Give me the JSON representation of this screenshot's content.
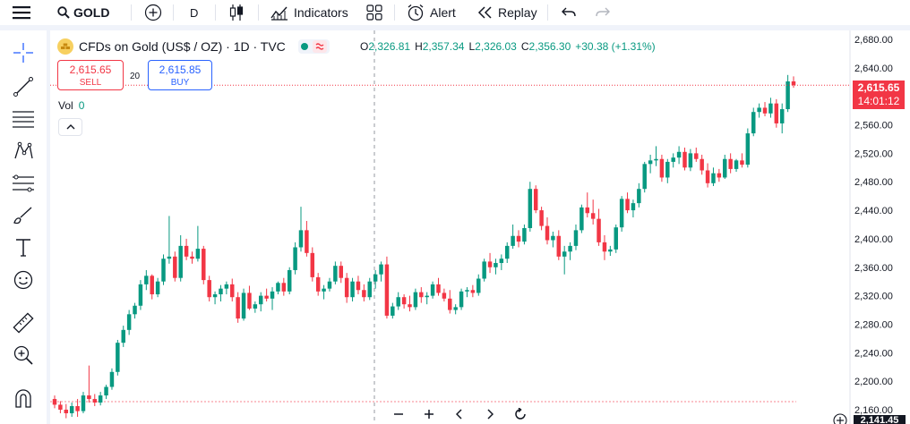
{
  "topbar": {
    "symbol": "GOLD",
    "interval": "D",
    "indicators_label": "Indicators",
    "alert_label": "Alert",
    "replay_label": "Replay"
  },
  "legend": {
    "title": "CFDs on Gold (US$ / OZ) · 1D · TVC",
    "ohlc": {
      "o_key": "O",
      "o_val": "2,326.81",
      "h_key": "H",
      "h_val": "2,357.34",
      "l_key": "L",
      "l_val": "2,326.03",
      "c_key": "C",
      "c_val": "2,356.30",
      "change": "+30.38 (+1.31%)"
    }
  },
  "trade": {
    "sell_price": "2,615.65",
    "sell_label": "SELL",
    "spread": "20",
    "buy_price": "2,615.85",
    "buy_label": "BUY"
  },
  "volume": {
    "label": "Vol",
    "value": "0"
  },
  "price_axis": {
    "current_price": "2,615.65",
    "countdown": "14:01:12",
    "bottom_price": "2,141.45"
  },
  "colors": {
    "up": "#089981",
    "down": "#f23645",
    "grid_line": "#f0f3fa",
    "accent": "#2962ff"
  },
  "icons": [
    "menu-icon",
    "search-icon",
    "plus-circle-icon",
    "candles-icon",
    "indicators-icon",
    "layout-icon",
    "alert-icon",
    "replay-icon",
    "undo-icon",
    "redo-icon",
    "crosshair-icon",
    "trendline-icon",
    "fib-icon",
    "pattern-icon",
    "projection-icon",
    "brush-icon",
    "text-icon",
    "emoji-icon",
    "ruler-icon",
    "zoom-icon",
    "magnet-icon"
  ],
  "chart_data": {
    "type": "candlestick",
    "ylim": [
      2140,
      2690
    ],
    "yticks": [
      "2,680.00",
      "2,640.00",
      "2,600.00",
      "2,560.00",
      "2,520.00",
      "2,480.00",
      "2,440.00",
      "2,400.00",
      "2,360.00",
      "2,320.00",
      "2,280.00",
      "2,240.00",
      "2,200.00",
      "2,160.00"
    ],
    "ytick_values": [
      2680,
      2640,
      2600,
      2560,
      2520,
      2480,
      2440,
      2400,
      2360,
      2320,
      2280,
      2240,
      2200,
      2160
    ],
    "candles": [
      [
        2175,
        2180,
        2162,
        2167
      ],
      [
        2167,
        2172,
        2155,
        2160
      ],
      [
        2160,
        2168,
        2148,
        2155
      ],
      [
        2155,
        2170,
        2150,
        2165
      ],
      [
        2165,
        2175,
        2150,
        2158
      ],
      [
        2158,
        2185,
        2155,
        2180
      ],
      [
        2180,
        2222,
        2170,
        2175
      ],
      [
        2175,
        2182,
        2165,
        2170
      ],
      [
        2170,
        2185,
        2166,
        2180
      ],
      [
        2180,
        2195,
        2175,
        2192
      ],
      [
        2192,
        2218,
        2188,
        2213
      ],
      [
        2213,
        2258,
        2208,
        2254
      ],
      [
        2254,
        2278,
        2248,
        2272
      ],
      [
        2272,
        2300,
        2265,
        2294
      ],
      [
        2294,
        2310,
        2288,
        2306
      ],
      [
        2306,
        2342,
        2300,
        2336
      ],
      [
        2336,
        2356,
        2328,
        2348
      ],
      [
        2348,
        2350,
        2315,
        2322
      ],
      [
        2322,
        2345,
        2318,
        2340
      ],
      [
        2340,
        2378,
        2335,
        2372
      ],
      [
        2372,
        2432,
        2365,
        2375
      ],
      [
        2375,
        2382,
        2340,
        2345
      ],
      [
        2345,
        2405,
        2340,
        2390
      ],
      [
        2390,
        2400,
        2370,
        2375
      ],
      [
        2375,
        2382,
        2365,
        2372
      ],
      [
        2372,
        2418,
        2368,
        2386
      ],
      [
        2386,
        2390,
        2336,
        2342
      ],
      [
        2342,
        2348,
        2312,
        2318
      ],
      [
        2318,
        2326,
        2308,
        2322
      ],
      [
        2322,
        2335,
        2312,
        2330
      ],
      [
        2330,
        2340,
        2322,
        2336
      ],
      [
        2336,
        2344,
        2312,
        2318
      ],
      [
        2318,
        2325,
        2282,
        2288
      ],
      [
        2288,
        2330,
        2285,
        2324
      ],
      [
        2324,
        2334,
        2300,
        2302
      ],
      [
        2302,
        2312,
        2296,
        2308
      ],
      [
        2308,
        2325,
        2298,
        2320
      ],
      [
        2320,
        2330,
        2312,
        2316
      ],
      [
        2316,
        2332,
        2300,
        2326
      ],
      [
        2326,
        2340,
        2322,
        2338
      ],
      [
        2338,
        2345,
        2320,
        2326
      ],
      [
        2326,
        2360,
        2322,
        2356
      ],
      [
        2356,
        2395,
        2350,
        2388
      ],
      [
        2388,
        2445,
        2382,
        2412
      ],
      [
        2412,
        2425,
        2375,
        2380
      ],
      [
        2380,
        2388,
        2340,
        2346
      ],
      [
        2346,
        2352,
        2320,
        2326
      ],
      [
        2326,
        2335,
        2315,
        2330
      ],
      [
        2330,
        2345,
        2326,
        2340
      ],
      [
        2340,
        2368,
        2336,
        2362
      ],
      [
        2362,
        2368,
        2338,
        2345
      ],
      [
        2345,
        2352,
        2310,
        2318
      ],
      [
        2318,
        2345,
        2312,
        2340
      ],
      [
        2340,
        2348,
        2322,
        2328
      ],
      [
        2328,
        2336,
        2312,
        2318
      ],
      [
        2318,
        2345,
        2314,
        2340
      ],
      [
        2340,
        2356,
        2330,
        2350
      ],
      [
        2350,
        2368,
        2340,
        2364
      ],
      [
        2364,
        2375,
        2288,
        2292
      ],
      [
        2292,
        2310,
        2288,
        2305
      ],
      [
        2305,
        2325,
        2300,
        2318
      ],
      [
        2318,
        2322,
        2302,
        2308
      ],
      [
        2308,
        2320,
        2298,
        2304
      ],
      [
        2304,
        2330,
        2300,
        2325
      ],
      [
        2325,
        2332,
        2310,
        2318
      ],
      [
        2318,
        2325,
        2308,
        2320
      ],
      [
        2320,
        2340,
        2316,
        2336
      ],
      [
        2336,
        2345,
        2320,
        2324
      ],
      [
        2324,
        2330,
        2312,
        2316
      ],
      [
        2316,
        2328,
        2295,
        2300
      ],
      [
        2300,
        2308,
        2294,
        2304
      ],
      [
        2304,
        2330,
        2300,
        2326
      ],
      [
        2326,
        2332,
        2318,
        2328
      ],
      [
        2328,
        2335,
        2318,
        2324
      ],
      [
        2324,
        2350,
        2320,
        2344
      ],
      [
        2344,
        2372,
        2340,
        2368
      ],
      [
        2368,
        2380,
        2352,
        2360
      ],
      [
        2360,
        2372,
        2350,
        2366
      ],
      [
        2366,
        2378,
        2356,
        2372
      ],
      [
        2372,
        2395,
        2366,
        2390
      ],
      [
        2390,
        2420,
        2386,
        2404
      ],
      [
        2404,
        2412,
        2388,
        2396
      ],
      [
        2396,
        2420,
        2392,
        2415
      ],
      [
        2415,
        2480,
        2410,
        2470
      ],
      [
        2470,
        2475,
        2436,
        2440
      ],
      [
        2440,
        2445,
        2412,
        2418
      ],
      [
        2418,
        2430,
        2392,
        2398
      ],
      [
        2398,
        2410,
        2388,
        2404
      ],
      [
        2404,
        2412,
        2370,
        2375
      ],
      [
        2375,
        2390,
        2350,
        2382
      ],
      [
        2382,
        2395,
        2370,
        2390
      ],
      [
        2390,
        2420,
        2384,
        2412
      ],
      [
        2412,
        2448,
        2408,
        2444
      ],
      [
        2444,
        2465,
        2430,
        2436
      ],
      [
        2436,
        2455,
        2420,
        2428
      ],
      [
        2428,
        2442,
        2390,
        2395
      ],
      [
        2395,
        2405,
        2370,
        2382
      ],
      [
        2382,
        2390,
        2376,
        2385
      ],
      [
        2385,
        2420,
        2380,
        2416
      ],
      [
        2416,
        2460,
        2410,
        2456
      ],
      [
        2456,
        2465,
        2436,
        2440
      ],
      [
        2440,
        2455,
        2430,
        2450
      ],
      [
        2450,
        2478,
        2444,
        2470
      ],
      [
        2470,
        2508,
        2465,
        2505
      ],
      [
        2505,
        2518,
        2492,
        2510
      ],
      [
        2510,
        2530,
        2502,
        2512
      ],
      [
        2512,
        2518,
        2480,
        2486
      ],
      [
        2486,
        2512,
        2478,
        2508
      ],
      [
        2508,
        2520,
        2500,
        2514
      ],
      [
        2514,
        2530,
        2505,
        2522
      ],
      [
        2522,
        2528,
        2496,
        2500
      ],
      [
        2500,
        2526,
        2495,
        2520
      ],
      [
        2520,
        2528,
        2508,
        2512
      ],
      [
        2512,
        2518,
        2490,
        2496
      ],
      [
        2496,
        2506,
        2472,
        2478
      ],
      [
        2478,
        2500,
        2474,
        2492
      ],
      [
        2492,
        2498,
        2480,
        2486
      ],
      [
        2486,
        2518,
        2484,
        2512
      ],
      [
        2512,
        2520,
        2492,
        2498
      ],
      [
        2498,
        2512,
        2494,
        2510
      ],
      [
        2510,
        2520,
        2500,
        2504
      ],
      [
        2504,
        2555,
        2500,
        2548
      ],
      [
        2548,
        2584,
        2544,
        2578
      ],
      [
        2578,
        2590,
        2570,
        2584
      ],
      [
        2584,
        2592,
        2572,
        2576
      ],
      [
        2576,
        2598,
        2570,
        2590
      ],
      [
        2590,
        2596,
        2556,
        2562
      ],
      [
        2562,
        2590,
        2548,
        2582
      ],
      [
        2582,
        2630,
        2578,
        2621
      ],
      [
        2621,
        2628,
        2612,
        2615.65
      ]
    ]
  }
}
